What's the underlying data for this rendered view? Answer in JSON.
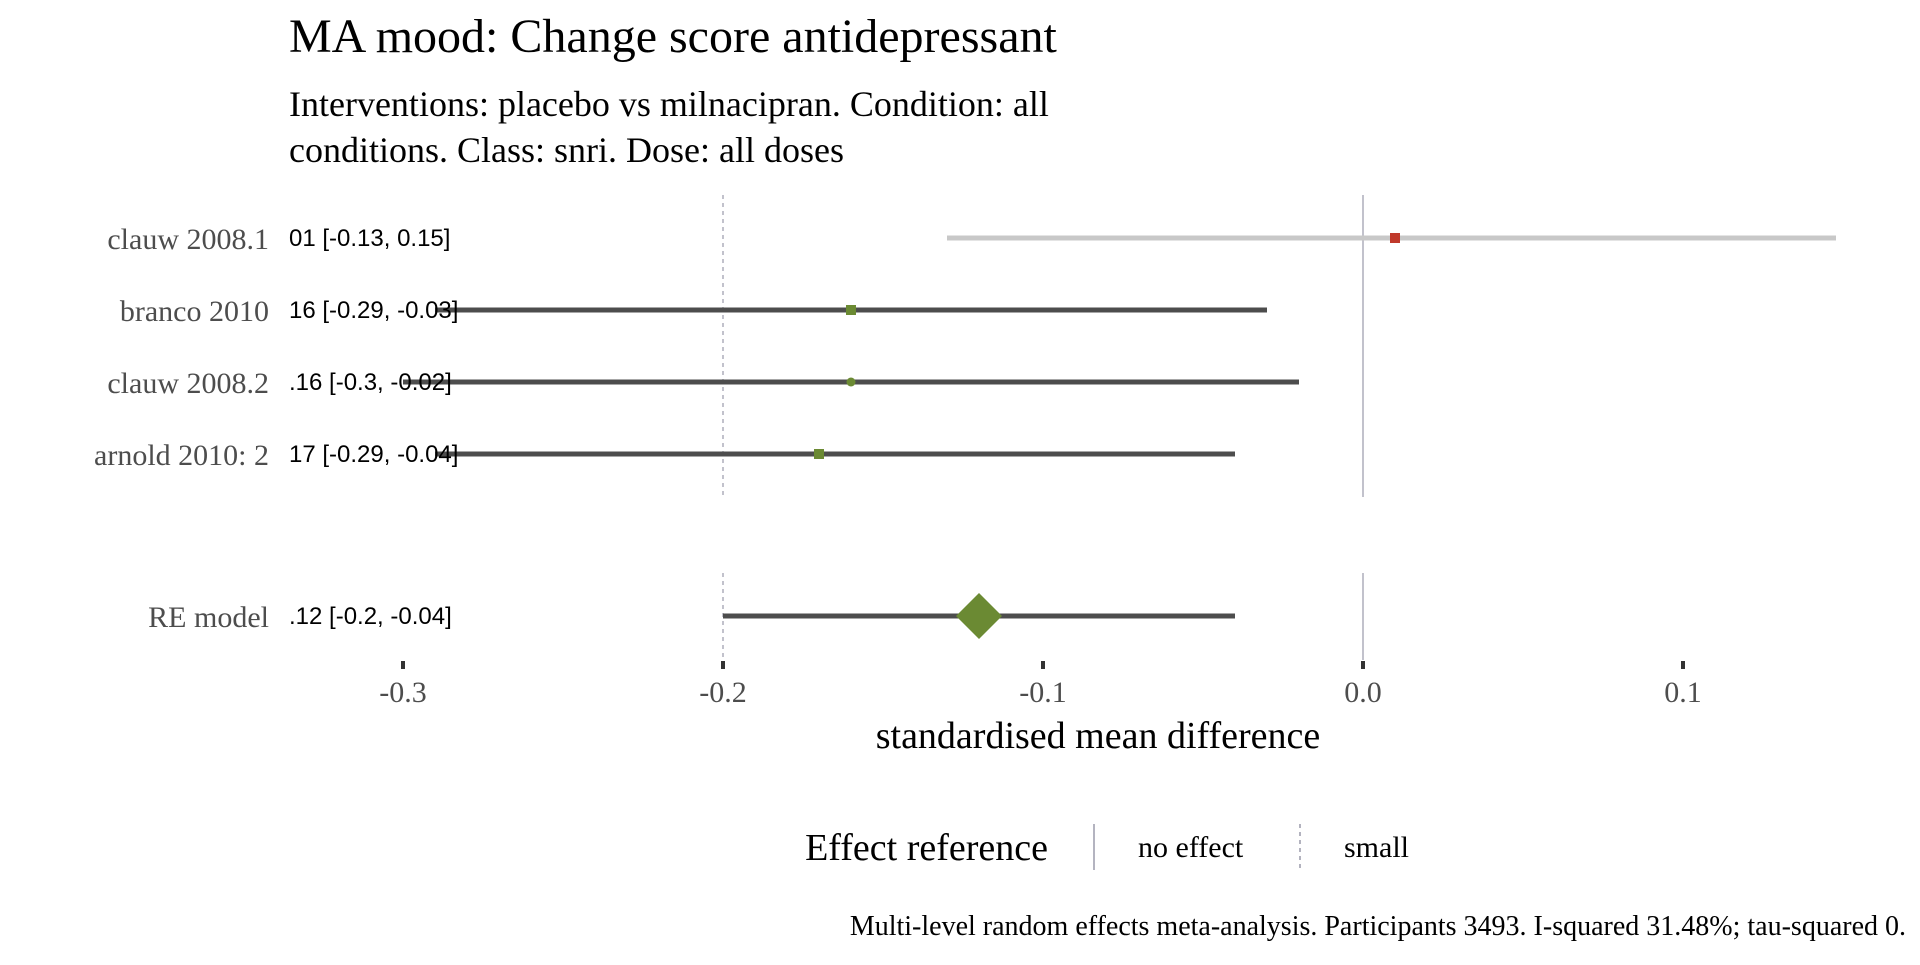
{
  "chart_data": {
    "type": "forest",
    "title": "MA mood: Change score antidepressant",
    "subtitle_lines": [
      "Interventions: placebo vs milnacipran. Condition: all",
      "conditions. Class: snri. Dose: all doses"
    ],
    "xlabel": "standardised mean difference",
    "xlim": [
      -0.3,
      0.15
    ],
    "x_ticks": [
      -0.3,
      -0.2,
      -0.1,
      0.0,
      0.1
    ],
    "x_tick_labels": [
      "-0.3",
      "-0.2",
      "-0.1",
      "0.0",
      "0.1"
    ],
    "reference_lines": [
      {
        "name": "no effect",
        "x": 0.0,
        "style": "solid"
      },
      {
        "name": "small",
        "x": -0.2,
        "style": "dotted"
      }
    ],
    "studies": [
      {
        "label": "clauw 2008.1",
        "estimate": 0.01,
        "lower": -0.13,
        "upper": 0.15,
        "ci_text": "01 [-0.13, 0.15]",
        "color": "#c0392b",
        "line_color": "#c8c8c8"
      },
      {
        "label": "branco 2010",
        "estimate": -0.16,
        "lower": -0.29,
        "upper": -0.03,
        "ci_text": "16 [-0.29, -0.03]",
        "color": "#6b8a33",
        "line_color": "#4d4d4d"
      },
      {
        "label": "clauw 2008.2",
        "estimate": -0.16,
        "lower": -0.3,
        "upper": -0.02,
        "ci_text": ".16 [-0.3, -0.02]",
        "color": "#6b8a33",
        "line_color": "#4d4d4d"
      },
      {
        "label": "arnold 2010: 2",
        "estimate": -0.17,
        "lower": -0.29,
        "upper": -0.04,
        "ci_text": "17 [-0.29, -0.04]",
        "color": "#6b8a33",
        "line_color": "#4d4d4d"
      }
    ],
    "summary": {
      "label": "RE model",
      "estimate": -0.12,
      "lower": -0.2,
      "upper": -0.04,
      "ci_text": ".12 [-0.2, -0.04]",
      "color": "#6b8a33",
      "line_color": "#4d4d4d"
    },
    "legend": {
      "title": "Effect reference",
      "items": [
        {
          "name": "no effect",
          "style": "solid"
        },
        {
          "name": "small",
          "style": "dotted"
        }
      ],
      "position": "bottom"
    },
    "caption": "Multi-level random effects meta-analysis. Participants 3493. I-squared 31.48%; tau-squared 0.",
    "colors": {
      "text": "#000000",
      "label_gray": "#4d4d4d",
      "ref_line": "#9a9aaa",
      "grid_tick": "#333333"
    }
  }
}
